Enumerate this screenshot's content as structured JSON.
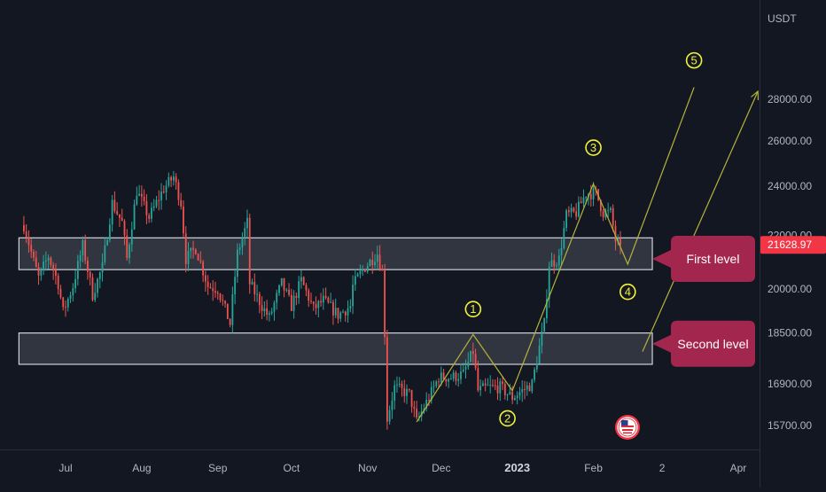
{
  "chart_data": {
    "type": "candlestick",
    "quote_currency": "USDT",
    "last_price": "21628.97",
    "colors": {
      "up": "#26a69a",
      "down": "#ef5350",
      "wave": "#b5b33a",
      "wave_label": "#f2f23a",
      "zone_fill": "rgba(210,214,224,0.16)",
      "callout": "#a3264f",
      "background": "#131722"
    },
    "y_ticks": [
      {
        "value": 28000,
        "label": "28000.00"
      },
      {
        "value": 26000,
        "label": "26000.00"
      },
      {
        "value": 24000,
        "label": "24000.00"
      },
      {
        "value": 22000,
        "label": "22000.00"
      },
      {
        "value": 20000,
        "label": "20000.00"
      },
      {
        "value": 18500,
        "label": "18500.00"
      },
      {
        "value": 16900,
        "label": "16900.00"
      },
      {
        "value": 15700,
        "label": "15700.00"
      }
    ],
    "x_ticks": [
      {
        "label": "Jul",
        "date": "2022-07-01",
        "bold": false
      },
      {
        "label": "Aug",
        "date": "2022-08-01",
        "bold": false
      },
      {
        "label": "Sep",
        "date": "2022-09-01",
        "bold": false
      },
      {
        "label": "Oct",
        "date": "2022-10-01",
        "bold": false
      },
      {
        "label": "Nov",
        "date": "2022-11-01",
        "bold": false
      },
      {
        "label": "Dec",
        "date": "2022-12-01",
        "bold": false
      },
      {
        "label": "2023",
        "date": "2023-01-01",
        "bold": true
      },
      {
        "label": "Feb",
        "date": "2023-02-01",
        "bold": false
      },
      {
        "label": "2",
        "date": "2023-03-01",
        "bold": false
      },
      {
        "label": "Apr",
        "date": "2023-04-01",
        "bold": false
      }
    ],
    "price_path": [
      [
        "2022-06-14",
        22400
      ],
      [
        "2022-06-18",
        21000
      ],
      [
        "2022-06-20",
        20400
      ],
      [
        "2022-06-24",
        21200
      ],
      [
        "2022-06-28",
        20200
      ],
      [
        "2022-06-30",
        19200
      ],
      [
        "2022-07-04",
        20100
      ],
      [
        "2022-07-08",
        21600
      ],
      [
        "2022-07-12",
        19800
      ],
      [
        "2022-07-16",
        20800
      ],
      [
        "2022-07-20",
        23300
      ],
      [
        "2022-07-24",
        22500
      ],
      [
        "2022-07-26",
        21100
      ],
      [
        "2022-07-30",
        23800
      ],
      [
        "2022-08-04",
        22700
      ],
      [
        "2022-08-10",
        23900
      ],
      [
        "2022-08-14",
        24400
      ],
      [
        "2022-08-17",
        23300
      ],
      [
        "2022-08-19",
        21100
      ],
      [
        "2022-08-23",
        21500
      ],
      [
        "2022-08-28",
        20100
      ],
      [
        "2022-09-01",
        20000
      ],
      [
        "2022-09-06",
        18800
      ],
      [
        "2022-09-09",
        21300
      ],
      [
        "2022-09-13",
        22500
      ],
      [
        "2022-09-14",
        20200
      ],
      [
        "2022-09-19",
        19400
      ],
      [
        "2022-09-22",
        19000
      ],
      [
        "2022-09-27",
        20200
      ],
      [
        "2022-10-01",
        19400
      ],
      [
        "2022-10-05",
        20300
      ],
      [
        "2022-10-10",
        19300
      ],
      [
        "2022-10-14",
        19600
      ],
      [
        "2022-10-20",
        19100
      ],
      [
        "2022-10-25",
        19400
      ],
      [
        "2022-10-26",
        20100
      ],
      [
        "2022-10-30",
        20700
      ],
      [
        "2022-11-05",
        21300
      ],
      [
        "2022-11-07",
        20600
      ],
      [
        "2022-11-08",
        18500
      ],
      [
        "2022-11-09",
        15900
      ],
      [
        "2022-11-12",
        16800
      ],
      [
        "2022-11-18",
        16600
      ],
      [
        "2022-11-21",
        15800
      ],
      [
        "2022-11-26",
        16500
      ],
      [
        "2022-11-30",
        17100
      ],
      [
        "2022-12-05",
        17100
      ],
      [
        "2022-12-10",
        17200
      ],
      [
        "2022-12-14",
        17900
      ],
      [
        "2022-12-16",
        16700
      ],
      [
        "2022-12-20",
        16800
      ],
      [
        "2022-12-25",
        16800
      ],
      [
        "2022-12-30",
        16500
      ],
      [
        "2023-01-01",
        16600
      ],
      [
        "2023-01-07",
        16900
      ],
      [
        "2023-01-12",
        18800
      ],
      [
        "2023-01-14",
        20900
      ],
      [
        "2023-01-18",
        21100
      ],
      [
        "2023-01-21",
        22800
      ],
      [
        "2023-01-25",
        22900
      ],
      [
        "2023-01-29",
        23700
      ],
      [
        "2023-02-02",
        23700
      ],
      [
        "2023-02-05",
        22900
      ],
      [
        "2023-02-08",
        22900
      ],
      [
        "2023-02-10",
        21800
      ],
      [
        "2023-02-12",
        21628.97
      ]
    ],
    "zones": [
      {
        "name": "first-level-zone",
        "start": "2022-06-12",
        "end": "2023-02-25",
        "top": 21900,
        "bottom": 20700
      },
      {
        "name": "second-level-zone",
        "start": "2022-06-12",
        "end": "2023-02-25",
        "top": 18500,
        "bottom": 17500
      }
    ],
    "wave_path": [
      [
        "2022-11-21",
        15800
      ],
      [
        "2022-12-14",
        18450
      ],
      [
        "2022-12-30",
        16700
      ],
      [
        "2023-02-01",
        24100
      ],
      [
        "2023-02-15",
        20900
      ],
      [
        "2023-03-14",
        28600
      ]
    ],
    "wave_labels": [
      {
        "text": "1",
        "date": "2022-12-14",
        "price": 19300
      },
      {
        "text": "2",
        "date": "2022-12-28",
        "price": 15900
      },
      {
        "text": "3",
        "date": "2023-02-01",
        "price": 25700
      },
      {
        "text": "4",
        "date": "2023-02-15",
        "price": 19900
      },
      {
        "text": "5",
        "date": "2023-03-14",
        "price": 30000
      }
    ],
    "arrow": {
      "from": [
        "2023-02-21",
        17900
      ],
      "to": [
        "2023-04-09",
        28400
      ]
    },
    "callouts": [
      {
        "name": "first-level-callout",
        "text": "First level",
        "price": 21100
      },
      {
        "name": "second-level-callout",
        "text": "Second level",
        "price": 18150
      }
    ]
  }
}
